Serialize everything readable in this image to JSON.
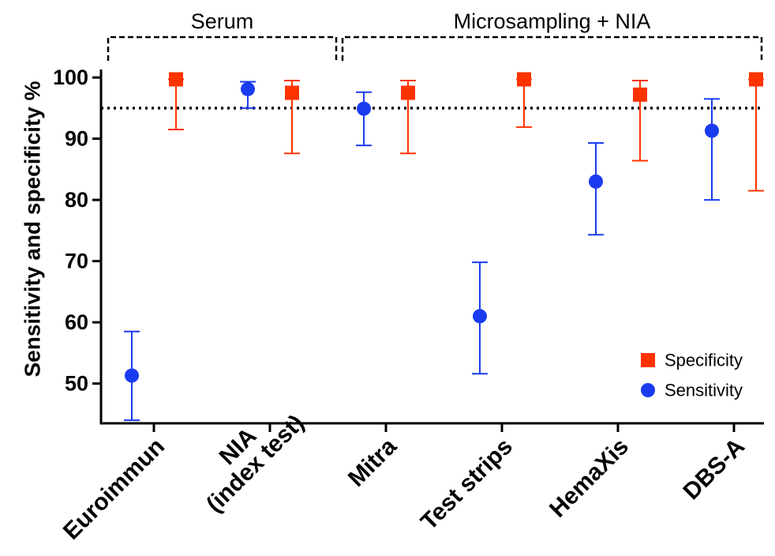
{
  "chart_data": {
    "type": "scatter",
    "title": "",
    "xlabel": "",
    "ylabel": "Sensitivity and specificity %",
    "ylim": [
      43.5,
      104
    ],
    "yticks": [
      50,
      60,
      70,
      80,
      90,
      100
    ],
    "reference_line": 95,
    "categories": [
      "Euroimmun",
      "NIA\n(index test)",
      "Mitra",
      "Test strips",
      "HemaXis",
      "DBS-A"
    ],
    "groups": [
      {
        "label": "Serum",
        "categories": [
          0,
          1
        ]
      },
      {
        "label": "Microsampling + NIA",
        "categories": [
          2,
          3,
          4,
          5
        ]
      }
    ],
    "legend_position": "bottom-right",
    "series": [
      {
        "name": "Specificity",
        "marker": "square",
        "color": "#ff3300",
        "values": [
          99.7,
          97.5,
          97.5,
          99.7,
          97.2,
          99.7
        ],
        "lower": [
          91.5,
          87.6,
          87.6,
          91.9,
          86.4,
          81.5
        ],
        "upper": [
          99.7,
          99.5,
          99.5,
          99.7,
          99.5,
          99.7
        ]
      },
      {
        "name": "Sensitivity",
        "marker": "circle",
        "color": "#1a3cf0",
        "values": [
          51.3,
          98.1,
          94.9,
          61.0,
          83.0,
          91.3
        ],
        "lower": [
          44.0,
          95.0,
          88.9,
          51.6,
          74.3,
          80.0
        ],
        "upper": [
          58.5,
          99.3,
          97.6,
          69.8,
          89.3,
          96.5
        ]
      }
    ]
  }
}
